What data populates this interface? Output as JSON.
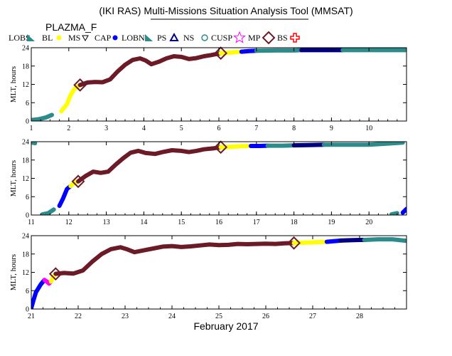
{
  "title": "(IKI RAS) Multi-Missions Situation Analysis Tool (MMSAT)",
  "mission": "PLAZMA_F",
  "legend": [
    {
      "label": "LOBS",
      "symbol": "triangle-solid",
      "color": "#2e8b8b"
    },
    {
      "label": "BL",
      "symbol": "dot",
      "color": "#ffff00"
    },
    {
      "label": "MS",
      "symbol": "triangle-down",
      "color": "#000000"
    },
    {
      "label": "CAP",
      "symbol": "dot",
      "color": "#0000ff"
    },
    {
      "label": "LOBN",
      "symbol": "triangle-solid",
      "color": "#2e8b8b"
    },
    {
      "label": "PS",
      "symbol": "triangle-open",
      "color": "#000080"
    },
    {
      "label": "NS",
      "symbol": "circle-open",
      "color": "#2e8b8b"
    },
    {
      "label": "CUSP",
      "symbol": "star",
      "color": "#ff00ff"
    },
    {
      "label": "MP",
      "symbol": "diamond",
      "color": "#6b1a26"
    },
    {
      "label": "BS",
      "symbol": "cross",
      "color": "#ff0000"
    }
  ],
  "xlabel": "February 2017",
  "chart_data": [
    {
      "type": "line",
      "ylabel": "MLT, hours",
      "xlim": [
        1,
        11
      ],
      "ylim": [
        0,
        24
      ],
      "xticks": [
        "1",
        "2",
        "3",
        "4",
        "5",
        "6",
        "7",
        "8",
        "9",
        "10"
      ],
      "yticks": [
        "0",
        "6",
        "12",
        "18",
        "24"
      ],
      "segments": [
        {
          "region": "LOBS",
          "color": "#2e8b8b",
          "points": [
            [
              1.0,
              0.3
            ],
            [
              1.2,
              0.6
            ],
            [
              1.4,
              1.2
            ],
            [
              1.55,
              2.0
            ]
          ]
        },
        {
          "region": "BL",
          "color": "#ffff00",
          "points": [
            [
              1.8,
              3.2
            ],
            [
              1.95,
              5.5
            ],
            [
              2.05,
              8.5
            ],
            [
              2.15,
              10.5
            ],
            [
              2.3,
              11.8
            ]
          ]
        },
        {
          "region": "MP",
          "color": "#6b1a26",
          "points": [
            [
              2.3,
              11.8
            ],
            [
              2.5,
              12.6
            ],
            [
              2.7,
              12.8
            ],
            [
              2.9,
              12.7
            ],
            [
              3.1,
              13.6
            ],
            [
              3.3,
              16.2
            ],
            [
              3.5,
              18.4
            ],
            [
              3.7,
              20.0
            ],
            [
              3.9,
              20.5
            ],
            [
              4.05,
              19.8
            ],
            [
              4.2,
              18.6
            ],
            [
              4.4,
              19.4
            ],
            [
              4.6,
              20.5
            ],
            [
              4.8,
              21.2
            ],
            [
              5.0,
              21.0
            ],
            [
              5.2,
              20.3
            ],
            [
              5.4,
              20.6
            ],
            [
              5.6,
              21.2
            ],
            [
              5.8,
              21.6
            ],
            [
              6.05,
              22.2
            ]
          ]
        },
        {
          "region": "BL",
          "color": "#ffff00",
          "points": [
            [
              6.05,
              22.2
            ],
            [
              6.3,
              22.4
            ],
            [
              6.5,
              22.6
            ],
            [
              6.6,
              22.7
            ]
          ]
        },
        {
          "region": "CAP",
          "color": "#0000ff",
          "points": [
            [
              6.6,
              22.7
            ],
            [
              6.8,
              22.9
            ],
            [
              7.0,
              23.0
            ]
          ]
        },
        {
          "region": "LOBN",
          "color": "#2e8b8b",
          "points": [
            [
              7.0,
              23.0
            ],
            [
              7.5,
              23.1
            ],
            [
              8.0,
              23.1
            ],
            [
              8.2,
              23.2
            ]
          ]
        },
        {
          "region": "PS",
          "color": "#000080",
          "points": [
            [
              8.2,
              23.2
            ],
            [
              8.6,
              23.2
            ],
            [
              9.0,
              23.2
            ],
            [
              9.3,
              23.2
            ]
          ]
        },
        {
          "region": "LOBN",
          "color": "#2e8b8b",
          "points": [
            [
              9.3,
              23.2
            ],
            [
              9.8,
              23.2
            ],
            [
              10.3,
              23.2
            ],
            [
              11.0,
              23.2
            ]
          ]
        }
      ],
      "markers": [
        {
          "type": "MP",
          "x": 2.3,
          "y": 11.8
        },
        {
          "type": "MP",
          "x": 6.05,
          "y": 22.2
        }
      ]
    },
    {
      "type": "line",
      "ylabel": "MLT, hours",
      "xlim": [
        11,
        21
      ],
      "ylim": [
        0,
        24
      ],
      "xticks": [
        "11",
        "12",
        "13",
        "14",
        "15",
        "16",
        "17",
        "18",
        "19",
        "20"
      ],
      "yticks": [
        "0",
        "6",
        "12",
        "18",
        "24"
      ],
      "segments": [
        {
          "region": "LOBN",
          "color": "#2e8b8b",
          "points": [
            [
              11.0,
              23.8
            ],
            [
              11.1,
              23.5
            ]
          ]
        },
        {
          "region": "LOBS",
          "color": "#2e8b8b",
          "points": [
            [
              11.3,
              0.2
            ],
            [
              11.45,
              0.6
            ],
            [
              11.6,
              1.8
            ]
          ]
        },
        {
          "region": "CAP",
          "color": "#0000ff",
          "points": [
            [
              11.75,
              3.0
            ],
            [
              11.85,
              5.5
            ],
            [
              11.95,
              8.5
            ],
            [
              12.05,
              9.5
            ]
          ]
        },
        {
          "region": "BL",
          "color": "#ffff00",
          "points": [
            [
              12.05,
              9.5
            ],
            [
              12.15,
              10.5
            ],
            [
              12.25,
              11.0
            ]
          ]
        },
        {
          "region": "MP",
          "color": "#6b1a26",
          "points": [
            [
              12.25,
              11.0
            ],
            [
              12.45,
              12.8
            ],
            [
              12.65,
              14.2
            ],
            [
              12.85,
              13.8
            ],
            [
              13.05,
              14.2
            ],
            [
              13.25,
              16.5
            ],
            [
              13.45,
              18.6
            ],
            [
              13.65,
              20.4
            ],
            [
              13.85,
              21.0
            ],
            [
              14.05,
              20.3
            ],
            [
              14.3,
              20.0
            ],
            [
              14.5,
              20.6
            ],
            [
              14.75,
              21.2
            ],
            [
              15.0,
              21.0
            ],
            [
              15.2,
              20.6
            ],
            [
              15.4,
              21.0
            ],
            [
              15.6,
              21.5
            ],
            [
              15.85,
              21.8
            ],
            [
              16.05,
              22.2
            ]
          ]
        },
        {
          "region": "BL",
          "color": "#ffff00",
          "points": [
            [
              16.05,
              22.2
            ],
            [
              16.3,
              22.3
            ],
            [
              16.6,
              22.5
            ],
            [
              16.85,
              22.6
            ]
          ]
        },
        {
          "region": "CAP",
          "color": "#0000ff",
          "points": [
            [
              16.85,
              22.6
            ],
            [
              17.1,
              22.6
            ],
            [
              17.3,
              22.7
            ]
          ]
        },
        {
          "region": "LOBN",
          "color": "#2e8b8b",
          "points": [
            [
              17.3,
              22.7
            ],
            [
              17.7,
              22.7
            ],
            [
              18.0,
              22.8
            ]
          ]
        },
        {
          "region": "PS",
          "color": "#000080",
          "points": [
            [
              18.0,
              22.8
            ],
            [
              18.4,
              22.9
            ],
            [
              18.8,
              23.0
            ]
          ]
        },
        {
          "region": "LOBN",
          "color": "#2e8b8b",
          "points": [
            [
              18.8,
              23.0
            ],
            [
              19.4,
              23.0
            ],
            [
              20.0,
              23.0
            ],
            [
              20.5,
              23.4
            ],
            [
              20.9,
              23.7
            ]
          ]
        },
        {
          "region": "LOBS",
          "color": "#2e8b8b",
          "points": [
            [
              20.6,
              0.2
            ],
            [
              20.75,
              0.6
            ]
          ]
        },
        {
          "region": "CAP",
          "color": "#0000ff",
          "points": [
            [
              20.9,
              0.8
            ],
            [
              21.0,
              2.0
            ]
          ]
        }
      ],
      "markers": [
        {
          "type": "MP",
          "x": 12.25,
          "y": 11.0
        },
        {
          "type": "MP",
          "x": 16.05,
          "y": 22.2
        }
      ]
    },
    {
      "type": "line",
      "ylabel": "MLT, hours",
      "xlim": [
        21,
        29
      ],
      "ylim": [
        0,
        24
      ],
      "xticks": [
        "21",
        "22",
        "23",
        "24",
        "25",
        "26",
        "27",
        "28"
      ],
      "yticks": [
        "0",
        "6",
        "12",
        "18",
        "24"
      ],
      "segments": [
        {
          "region": "CAP",
          "color": "#0000ff",
          "points": [
            [
              21.0,
              0.3
            ],
            [
              21.05,
              3.0
            ],
            [
              21.1,
              5.5
            ],
            [
              21.2,
              8.0
            ],
            [
              21.28,
              9.5
            ]
          ]
        },
        {
          "region": "CUSP",
          "color": "#ff00ff",
          "points": [
            [
              21.28,
              9.5
            ],
            [
              21.33,
              9.0
            ],
            [
              21.38,
              8.3
            ],
            [
              21.42,
              9.0
            ]
          ]
        },
        {
          "region": "BL",
          "color": "#ffff00",
          "points": [
            [
              21.42,
              9.0
            ],
            [
              21.47,
              10.5
            ],
            [
              21.52,
              11.5
            ]
          ]
        },
        {
          "region": "MP",
          "color": "#6b1a26",
          "points": [
            [
              21.52,
              11.5
            ],
            [
              21.7,
              11.8
            ],
            [
              21.9,
              11.6
            ],
            [
              22.1,
              12.6
            ],
            [
              22.3,
              15.5
            ],
            [
              22.5,
              18.0
            ],
            [
              22.7,
              19.6
            ],
            [
              22.9,
              20.2
            ],
            [
              23.05,
              19.5
            ],
            [
              23.2,
              18.6
            ],
            [
              23.4,
              19.2
            ],
            [
              23.6,
              19.8
            ],
            [
              23.8,
              20.4
            ],
            [
              24.0,
              20.6
            ],
            [
              24.2,
              20.3
            ],
            [
              24.4,
              20.5
            ],
            [
              24.6,
              20.8
            ],
            [
              24.8,
              21.1
            ],
            [
              25.0,
              20.9
            ],
            [
              25.2,
              21.0
            ],
            [
              25.4,
              21.3
            ],
            [
              25.6,
              21.2
            ],
            [
              25.8,
              21.3
            ],
            [
              26.0,
              21.4
            ],
            [
              26.2,
              21.3
            ],
            [
              26.4,
              21.5
            ],
            [
              26.6,
              21.6
            ]
          ]
        },
        {
          "region": "BL",
          "color": "#ffff00",
          "points": [
            [
              26.6,
              21.6
            ],
            [
              26.8,
              21.7
            ],
            [
              27.0,
              21.8
            ],
            [
              27.3,
              22.0
            ]
          ]
        },
        {
          "region": "CAP",
          "color": "#0000ff",
          "points": [
            [
              27.3,
              22.0
            ],
            [
              27.45,
              22.2
            ],
            [
              27.6,
              22.4
            ]
          ]
        },
        {
          "region": "PS",
          "color": "#000080",
          "points": [
            [
              27.6,
              22.4
            ],
            [
              27.8,
              22.5
            ],
            [
              28.0,
              22.6
            ],
            [
              28.1,
              22.6
            ]
          ]
        },
        {
          "region": "LOBN",
          "color": "#2e8b8b",
          "points": [
            [
              28.1,
              22.6
            ],
            [
              28.4,
              22.8
            ],
            [
              28.7,
              22.8
            ],
            [
              29.0,
              22.3
            ]
          ]
        }
      ],
      "markers": [
        {
          "type": "MP",
          "x": 21.52,
          "y": 11.5
        },
        {
          "type": "MP",
          "x": 26.6,
          "y": 21.6
        }
      ]
    }
  ]
}
